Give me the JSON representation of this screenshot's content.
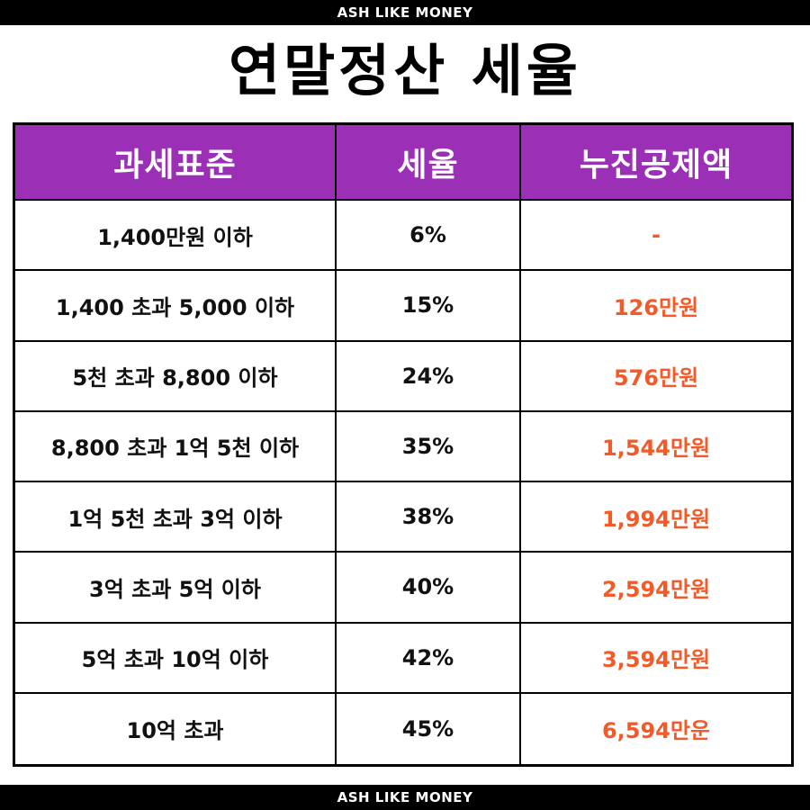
{
  "brand": "ASH LIKE MONEY",
  "title": "연말정산 세율",
  "colors": {
    "header_bg": "#9b2fb5",
    "deduction_text": "#f45a27",
    "bar_bg": "#000000"
  },
  "table": {
    "headers": [
      "과세표준",
      "세율",
      "누진공제액"
    ],
    "rows": [
      [
        "1,400만원 이하",
        "6%",
        "-"
      ],
      [
        "1,400 초과 5,000 이하",
        "15%",
        "126만원"
      ],
      [
        "5천 초과 8,800 이하",
        "24%",
        "576만원"
      ],
      [
        "8,800 초과 1억 5천 이하",
        "35%",
        "1,544만원"
      ],
      [
        "1억 5천 초과 3억 이하",
        "38%",
        "1,994만원"
      ],
      [
        "3억 초과 5억 이하",
        "40%",
        "2,594만원"
      ],
      [
        "5억 초과 10억 이하",
        "42%",
        "3,594만원"
      ],
      [
        "10억 초과",
        "45%",
        "6,594만운"
      ]
    ]
  }
}
